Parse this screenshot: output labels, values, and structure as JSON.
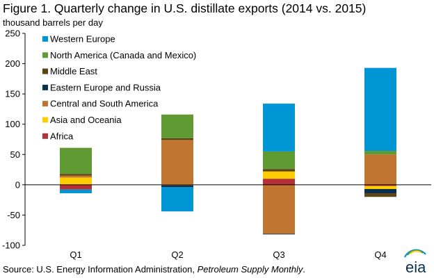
{
  "figure": {
    "title": "Figure 1. Quarterly change in U.S. distillate exports (2014 vs. 2015)",
    "unit_label": "thousand barrels per day",
    "source_prefix": "Source: U.S. Energy Information Administration, ",
    "source_title": "Petroleum Supply Monthly",
    "source_suffix": ".",
    "logo_text": "eia"
  },
  "chart_data": {
    "type": "bar",
    "stacked": true,
    "categories": [
      "Q1",
      "Q2",
      "Q3",
      "Q4"
    ],
    "ylabel": "thousand barrels per day",
    "ylim": [
      -100,
      250
    ],
    "yticks": [
      -100,
      -50,
      0,
      50,
      100,
      150,
      200,
      250
    ],
    "grid": false,
    "legend_position": "top-left",
    "series": [
      {
        "name": "Africa",
        "color": "#b5313a",
        "values": [
          -8,
          -1,
          10,
          -2
        ]
      },
      {
        "name": "Asia and Oceania",
        "color": "#ffcc00",
        "values": [
          12,
          1,
          12,
          -5
        ]
      },
      {
        "name": "Central and South America",
        "color": "#c07530",
        "values": [
          3,
          73,
          -81,
          50
        ]
      },
      {
        "name": "Eastern Europe and Russia",
        "color": "#0a3050",
        "values": [
          0,
          -3,
          -1,
          -7
        ]
      },
      {
        "name": "Middle East",
        "color": "#5e4314",
        "values": [
          3,
          3,
          4,
          -6
        ]
      },
      {
        "name": "North America (Canada and Mexico)",
        "color": "#5f9b32",
        "values": [
          43,
          39,
          29,
          6
        ]
      },
      {
        "name": "Western Europe",
        "color": "#0096d6",
        "values": [
          -6,
          -40,
          79,
          137
        ]
      }
    ]
  }
}
